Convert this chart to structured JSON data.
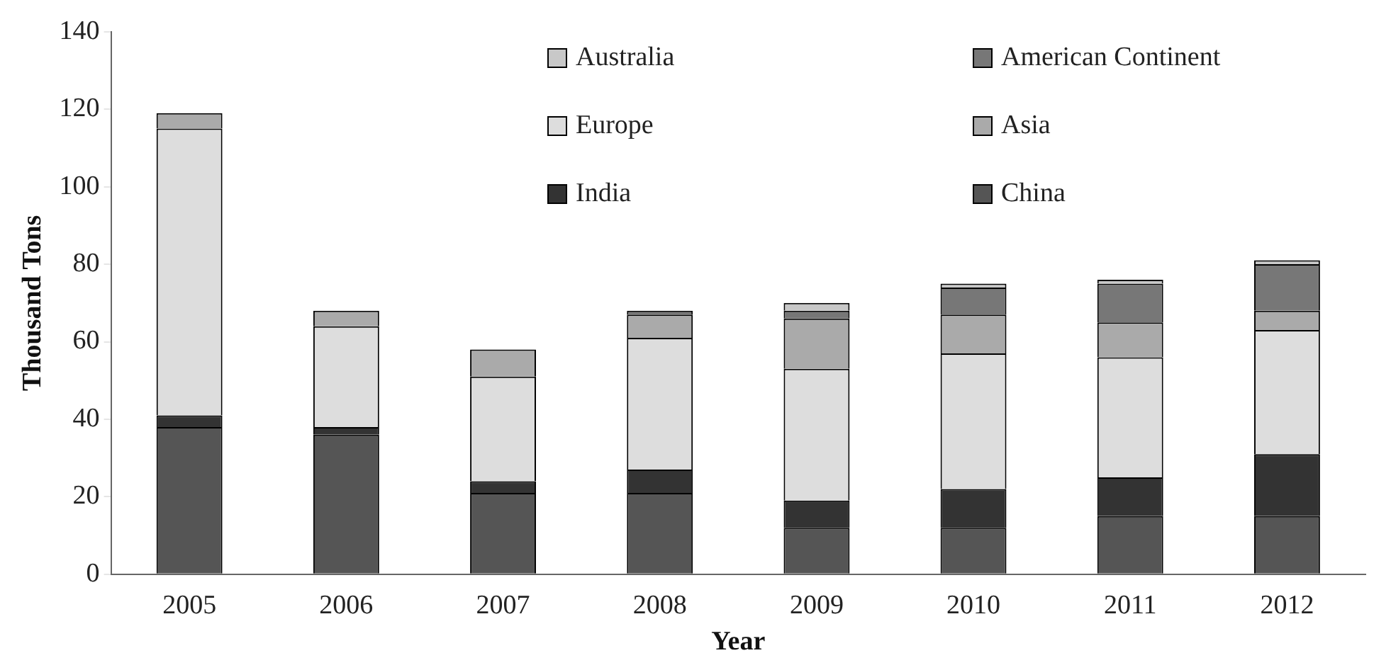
{
  "chart_data": {
    "type": "bar",
    "stacked": true,
    "xlabel": "Year",
    "ylabel": "Thousand Tons",
    "categories": [
      "2005",
      "2006",
      "2007",
      "2008",
      "2009",
      "2010",
      "2011",
      "2012"
    ],
    "ylim": [
      0,
      140
    ],
    "yticks": [
      0,
      20,
      40,
      60,
      80,
      100,
      120,
      140
    ],
    "grid": false,
    "legend": "top",
    "series": [
      {
        "name": "China",
        "color": "#555555",
        "values": [
          38,
          36,
          21,
          21,
          12,
          12,
          15,
          15
        ]
      },
      {
        "name": "India",
        "color": "#333333",
        "values": [
          3,
          2,
          3,
          6,
          7,
          10,
          10,
          16
        ]
      },
      {
        "name": "Europe",
        "color": "#dddddd",
        "values": [
          74,
          26,
          27,
          34,
          34,
          35,
          31,
          32
        ]
      },
      {
        "name": "Asia",
        "color": "#aaaaaa",
        "values": [
          4,
          4,
          7,
          6,
          13,
          10,
          9,
          5
        ]
      },
      {
        "name": "American Continent",
        "color": "#777777",
        "values": [
          0,
          0,
          0,
          1,
          2,
          7,
          10,
          12
        ]
      },
      {
        "name": "Australia",
        "color": "#c8c8c8",
        "values": [
          0,
          0,
          0,
          0,
          2,
          1,
          1,
          1
        ]
      }
    ]
  }
}
